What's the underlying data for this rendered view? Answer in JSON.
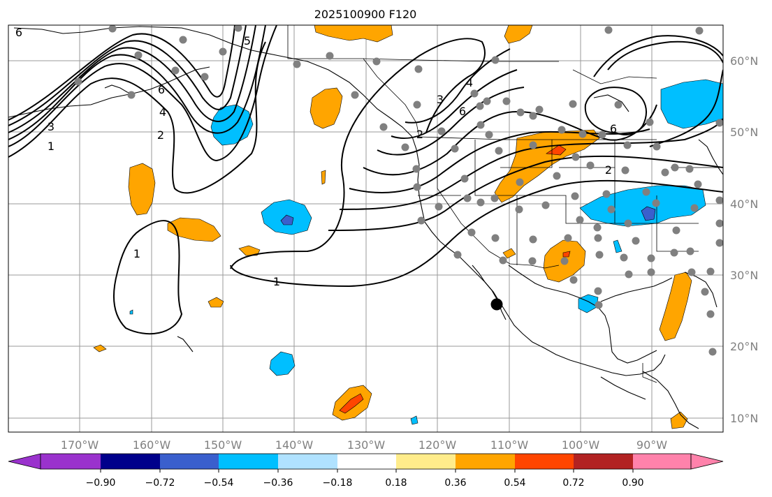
{
  "title": "2025100900 F120",
  "lat_labels": [
    "60°N",
    "50°N",
    "40°N",
    "30°N",
    "20°N",
    "10°N"
  ],
  "lon_labels": [
    "170°W",
    "160°W",
    "150°W",
    "140°W",
    "130°W",
    "120°W",
    "110°W",
    "100°W",
    "90°W"
  ],
  "colorbar": {
    "tick_labels": [
      "−0.90",
      "−0.72",
      "−0.54",
      "−0.36",
      "−0.18",
      "0.18",
      "0.36",
      "0.54",
      "0.72",
      "0.90"
    ],
    "colors": [
      "#9a32cd",
      "#00008b",
      "#3a5fcd",
      "#00bfff",
      "#b0e2ff",
      "#ffffff",
      "#ffec8b",
      "#ffa500",
      "#ff4500",
      "#b22222",
      "#ff82ab"
    ]
  },
  "contour_labels": {
    "c1": "1",
    "c2": "1",
    "c3": "2",
    "c4": "3",
    "c5": "4",
    "c6": "6",
    "c7": "5",
    "c8": "3",
    "c9": "4",
    "c10": "6",
    "c11": "2",
    "c12": "6",
    "c13": "2",
    "c14": "1",
    "c15": "6"
  },
  "colors": {
    "orange": "#ffa500",
    "red": "#ff4500",
    "light_blue": "#00bfff",
    "dark_blue": "#3a5fcd",
    "station_dot": "#808080",
    "marker": "#000000"
  }
}
